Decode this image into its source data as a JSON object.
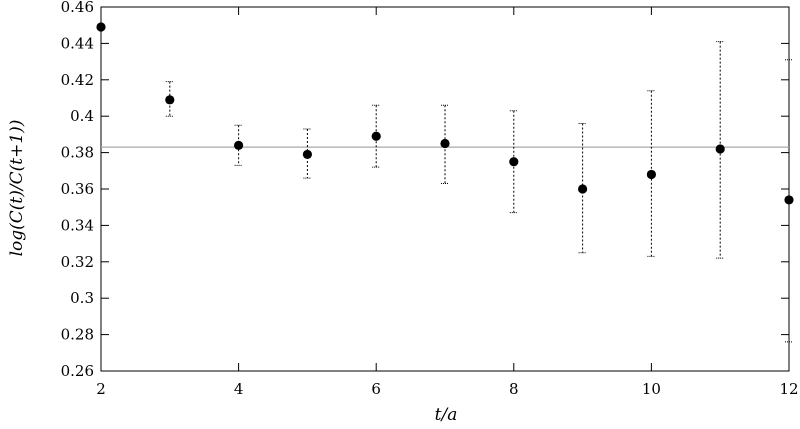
{
  "chart_data": {
    "type": "scatter",
    "title": "",
    "xlabel": "t/a",
    "ylabel": "log(C(t)/C(t+1))",
    "xlim": [
      2,
      12
    ],
    "ylim": [
      0.26,
      0.46
    ],
    "xticks": [
      2,
      4,
      6,
      8,
      10,
      12
    ],
    "xtick_labels": [
      "2",
      "4",
      "6",
      "8",
      "10",
      "12"
    ],
    "yticks": [
      0.26,
      0.28,
      0.3,
      0.32,
      0.34,
      0.36,
      0.38,
      0.4,
      0.42,
      0.44,
      0.46
    ],
    "ytick_labels": [
      "0.26",
      "0.28",
      "0.3",
      "0.32",
      "0.34",
      "0.36",
      "0.38",
      "0.4",
      "0.42",
      "0.44",
      "0.46"
    ],
    "grid": false,
    "reference_line": {
      "y": 0.383,
      "color": "#a8a8a8"
    },
    "series": [
      {
        "marker_color": "#000000",
        "points": [
          {
            "x": 2,
            "y": 0.449,
            "err_low": null,
            "err_high": null
          },
          {
            "x": 3,
            "y": 0.409,
            "err_low": 0.4,
            "err_high": 0.419
          },
          {
            "x": 4,
            "y": 0.384,
            "err_low": 0.373,
            "err_high": 0.395
          },
          {
            "x": 5,
            "y": 0.379,
            "err_low": 0.366,
            "err_high": 0.393
          },
          {
            "x": 6,
            "y": 0.389,
            "err_low": 0.372,
            "err_high": 0.406
          },
          {
            "x": 7,
            "y": 0.385,
            "err_low": 0.363,
            "err_high": 0.406
          },
          {
            "x": 8,
            "y": 0.375,
            "err_low": 0.347,
            "err_high": 0.403
          },
          {
            "x": 9,
            "y": 0.36,
            "err_low": 0.325,
            "err_high": 0.396
          },
          {
            "x": 10,
            "y": 0.368,
            "err_low": 0.323,
            "err_high": 0.414
          },
          {
            "x": 11,
            "y": 0.382,
            "err_low": 0.322,
            "err_high": 0.441
          },
          {
            "x": 12,
            "y": 0.354,
            "err_low": 0.276,
            "err_high": 0.431
          }
        ]
      }
    ]
  }
}
